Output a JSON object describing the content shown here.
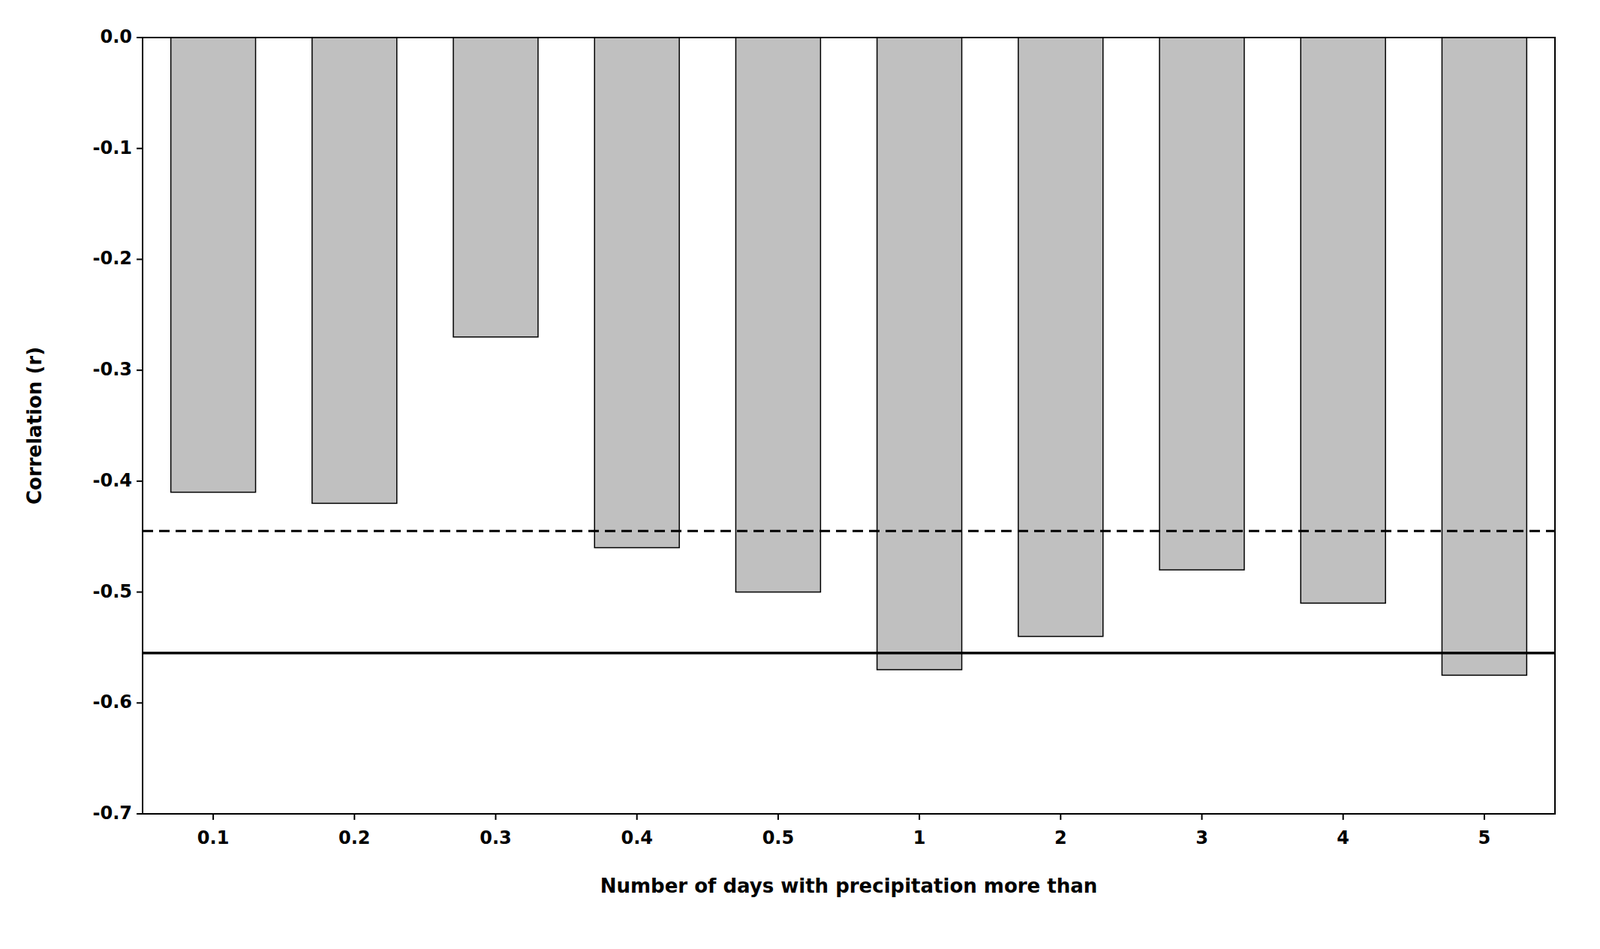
{
  "chart_data": {
    "type": "bar",
    "categories": [
      "0.1",
      "0.2",
      "0.3",
      "0.4",
      "0.5",
      "1",
      "2",
      "3",
      "4",
      "5"
    ],
    "values": [
      -0.41,
      -0.42,
      -0.27,
      -0.46,
      -0.5,
      -0.57,
      -0.54,
      -0.48,
      -0.51,
      -0.575
    ],
    "color": "#c0c0c0",
    "xlabel": "Number of days with precipitation more than",
    "ylabel": "Correlation (r)",
    "ylim": [
      -0.7,
      0.0
    ],
    "yticks": [
      {
        "value": 0.0,
        "label": "0.0"
      },
      -0.1,
      -0.2,
      -0.3,
      -0.4,
      -0.5,
      -0.6,
      -0.7
    ],
    "reference_lines": [
      {
        "value": -0.445,
        "line_style": "dashed"
      },
      {
        "value": -0.555,
        "line_style": "solid"
      }
    ],
    "grid": false
  }
}
